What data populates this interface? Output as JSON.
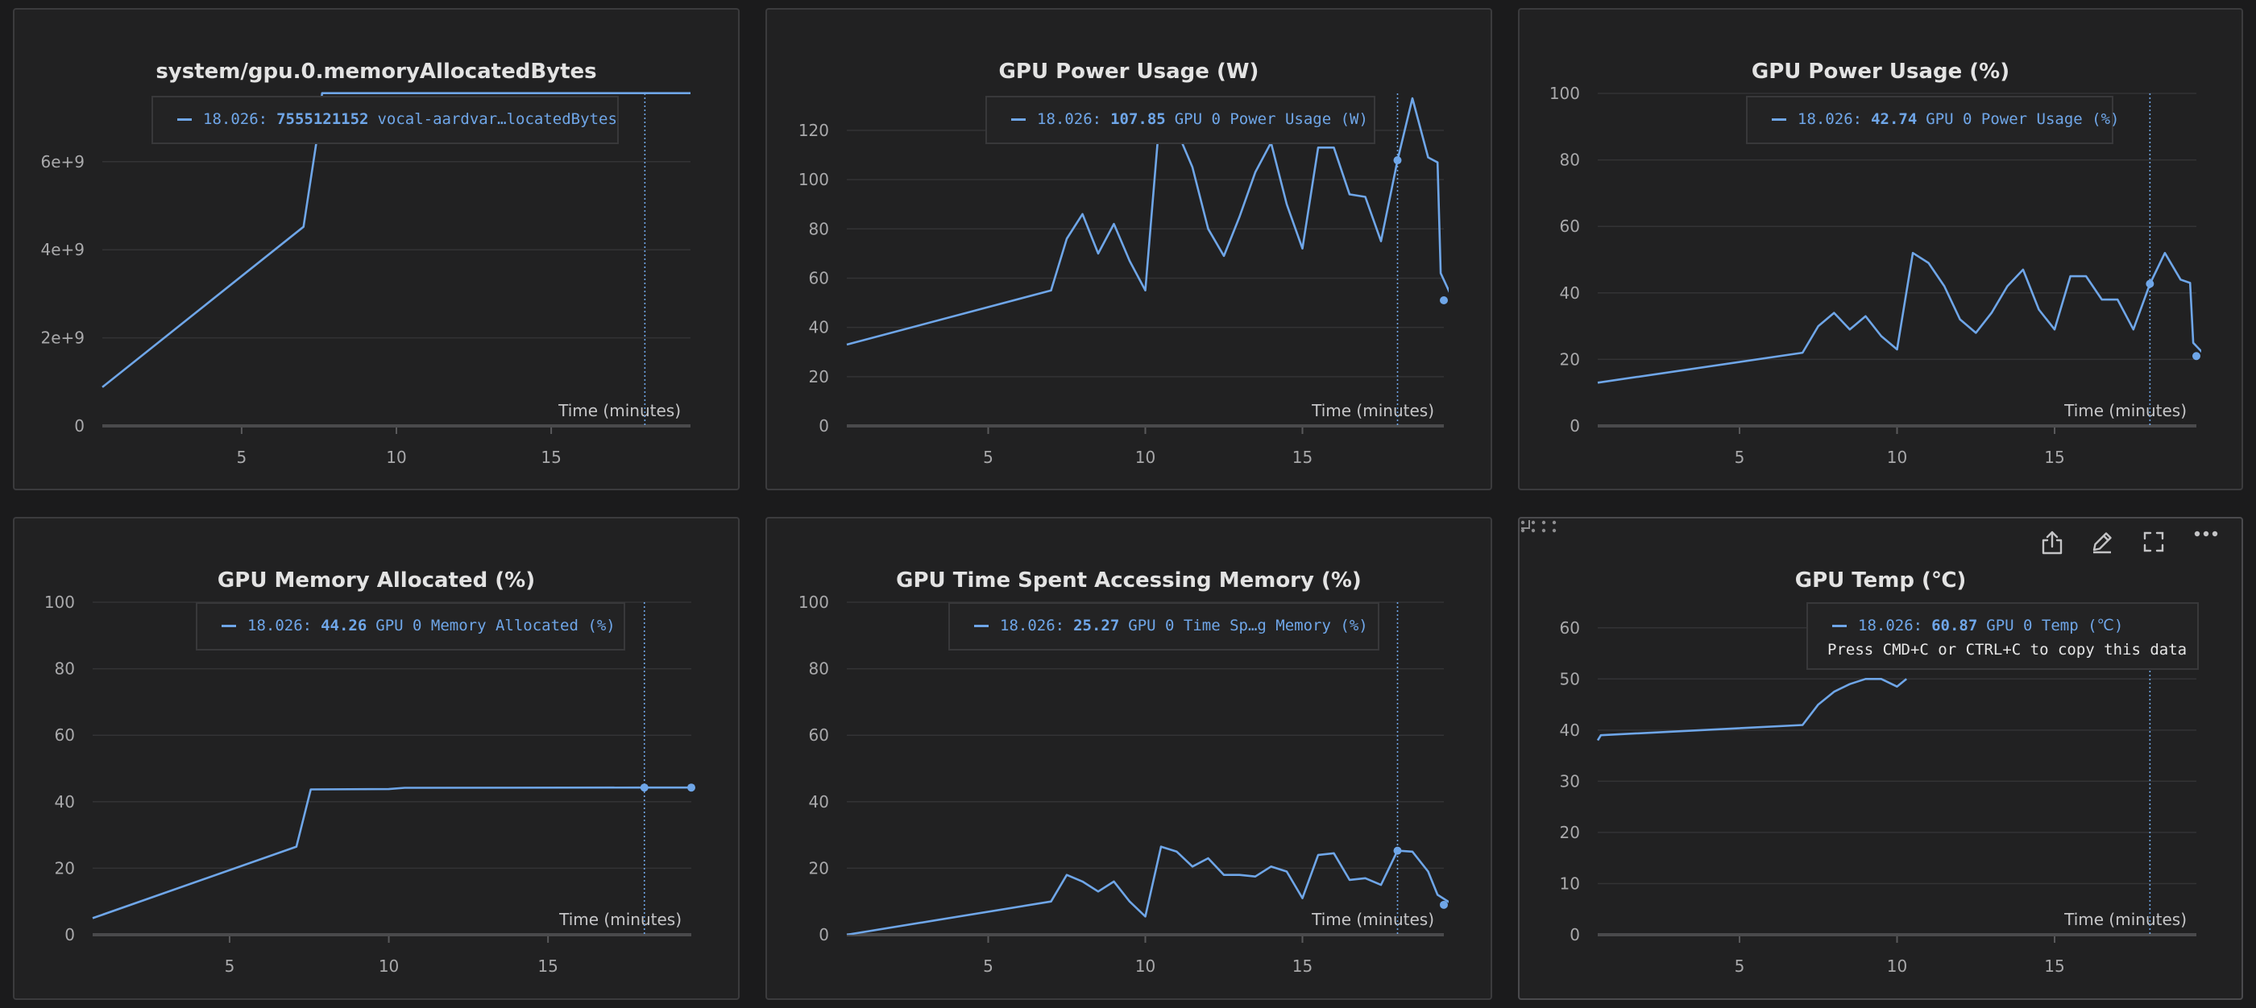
{
  "colors": {
    "series": "#6fa6e8",
    "panel_bg": "#212122",
    "page_bg": "#1b1b1c"
  },
  "panel_actions": [
    {
      "icon": "drag-handle-icon"
    },
    {
      "icon": "share-icon"
    },
    {
      "icon": "edit-icon"
    },
    {
      "icon": "fullscreen-icon"
    },
    {
      "icon": "more-options-icon"
    }
  ],
  "copy_hint": "Press CMD+C or CTRL+C to copy this data",
  "chart_data": [
    {
      "type": "line",
      "title": "system/gpu.0.memoryAllocatedBytes",
      "xlabel": "Time (minutes)",
      "ylabel": "",
      "xlim": [
        0.5,
        19.5
      ],
      "ylim": [
        0,
        7550000000.0
      ],
      "xticks": [
        5,
        10,
        15
      ],
      "yticks": [
        0,
        2000000000.0,
        4000000000.0,
        6000000000.0
      ],
      "ytick_labels": [
        "0",
        "2e+9",
        "4e+9",
        "6e+9"
      ],
      "grid": true,
      "cursor_x": 18.026,
      "tooltip": {
        "x": "18.026:",
        "value": "7555121152",
        "name": "vocal-aardvar…locatedBytes"
      },
      "series": [
        {
          "name": "vocal-aardvar…locatedBytes",
          "x": [
            0.5,
            7.0,
            7.45,
            7.6,
            17.2,
            18.026,
            19.5
          ],
          "y": [
            880000000,
            4520000000,
            6600000000,
            7555121152,
            7555121152,
            7555121152,
            7555121152
          ]
        }
      ]
    },
    {
      "type": "line",
      "title": "GPU Power Usage (W)",
      "xlabel": "Time (minutes)",
      "ylabel": "",
      "xlim": [
        0.5,
        19.5
      ],
      "ylim": [
        0,
        135
      ],
      "xticks": [
        5,
        10,
        15
      ],
      "yticks": [
        0,
        20,
        40,
        60,
        80,
        100,
        120
      ],
      "ytick_labels": [
        "0",
        "20",
        "40",
        "60",
        "80",
        "100",
        "120"
      ],
      "grid": true,
      "cursor_x": 18.026,
      "tooltip": {
        "x": "18.026:",
        "value": "107.85",
        "name": "GPU 0 Power Usage (W)"
      },
      "series": [
        {
          "name": "GPU 0 Power Usage (W)",
          "x": [
            0.5,
            7.0,
            7.5,
            8.0,
            8.5,
            9.0,
            9.5,
            10.0,
            10.5,
            11.0,
            11.5,
            12.0,
            12.5,
            13.0,
            13.5,
            14.0,
            14.5,
            15.0,
            15.5,
            16.0,
            16.5,
            17.0,
            17.5,
            18.026,
            18.5,
            19.0,
            19.3,
            19.4,
            19.8
          ],
          "y": [
            33,
            55,
            76,
            86,
            70,
            82,
            67,
            55,
            132,
            120,
            105,
            80,
            69,
            85,
            103,
            115,
            90,
            72,
            113,
            113,
            94,
            93,
            75,
            107.85,
            133,
            109,
            107,
            62,
            51
          ]
        }
      ]
    },
    {
      "type": "line",
      "title": "GPU Power Usage (%)",
      "xlabel": "Time (minutes)",
      "ylabel": "",
      "xlim": [
        0.5,
        19.5
      ],
      "ylim": [
        0,
        100
      ],
      "xticks": [
        5,
        10,
        15
      ],
      "yticks": [
        0,
        20,
        40,
        60,
        80,
        100
      ],
      "ytick_labels": [
        "0",
        "20",
        "40",
        "60",
        "80",
        "100"
      ],
      "grid": true,
      "cursor_x": 18.026,
      "tooltip": {
        "x": "18.026:",
        "value": "42.74",
        "name": "GPU 0 Power Usage (%)"
      },
      "series": [
        {
          "name": "GPU 0 Power Usage (%)",
          "x": [
            0.5,
            7.0,
            7.5,
            8.0,
            8.5,
            9.0,
            9.5,
            10.0,
            10.5,
            11.0,
            11.5,
            12.0,
            12.5,
            13.0,
            13.5,
            14.0,
            14.5,
            15.0,
            15.5,
            16.0,
            16.5,
            17.0,
            17.5,
            18.026,
            18.5,
            19.0,
            19.3,
            19.4,
            19.8
          ],
          "y": [
            13,
            22,
            30,
            34,
            29,
            33,
            27,
            23,
            52,
            49,
            42,
            32,
            28,
            34,
            42,
            47,
            35,
            29,
            45,
            45,
            38,
            38,
            29,
            42.74,
            52,
            44,
            43,
            25,
            21
          ]
        }
      ]
    },
    {
      "type": "line",
      "title": "GPU Memory Allocated (%)",
      "xlabel": "Time (minutes)",
      "ylabel": "",
      "xlim": [
        0.7,
        19.5
      ],
      "ylim": [
        0,
        100
      ],
      "xticks": [
        5,
        10,
        15
      ],
      "yticks": [
        0,
        20,
        40,
        60,
        80,
        100
      ],
      "ytick_labels": [
        "0",
        "20",
        "40",
        "60",
        "80",
        "100"
      ],
      "grid": true,
      "cursor_x": 18.026,
      "tooltip": {
        "x": "18.026:",
        "value": "44.26",
        "name": "GPU 0 Memory Allocated (%)"
      },
      "series": [
        {
          "name": "GPU 0 Memory Allocated (%)",
          "x": [
            0.7,
            7.1,
            7.55,
            10.0,
            10.5,
            18.026,
            19.5
          ],
          "y": [
            5,
            26.5,
            43.7,
            43.8,
            44.2,
            44.26,
            44.26
          ]
        }
      ]
    },
    {
      "type": "line",
      "title": "GPU Time Spent Accessing Memory (%)",
      "xlabel": "Time (minutes)",
      "ylabel": "",
      "xlim": [
        0.5,
        19.5
      ],
      "ylim": [
        0,
        100
      ],
      "xticks": [
        5,
        10,
        15
      ],
      "yticks": [
        0,
        20,
        40,
        60,
        80,
        100
      ],
      "ytick_labels": [
        "0",
        "20",
        "40",
        "60",
        "80",
        "100"
      ],
      "grid": true,
      "cursor_x": 18.026,
      "tooltip": {
        "x": "18.026:",
        "value": "25.27",
        "name": "GPU 0 Time Sp…g Memory (%)"
      },
      "series": [
        {
          "name": "GPU 0 Time Sp…g Memory (%)",
          "x": [
            0.5,
            7.0,
            7.5,
            8.0,
            8.5,
            9.0,
            9.5,
            10.0,
            10.5,
            11.0,
            11.5,
            12.0,
            12.5,
            13.0,
            13.5,
            14.0,
            14.5,
            15.0,
            15.5,
            16.0,
            16.5,
            17.0,
            17.5,
            18.026,
            18.5,
            19.0,
            19.3,
            19.8
          ],
          "y": [
            0,
            10,
            18,
            16,
            13,
            16,
            10,
            5.5,
            26.5,
            25,
            20.5,
            23,
            18,
            18,
            17.5,
            20.5,
            19,
            11,
            24,
            24.5,
            16.5,
            17,
            15,
            25.27,
            25,
            19,
            12,
            9
          ]
        }
      ]
    },
    {
      "type": "line",
      "title": "GPU Temp (℃)",
      "xlabel": "Time (minutes)",
      "ylabel": "",
      "xlim": [
        0.5,
        19.5
      ],
      "ylim": [
        0,
        65
      ],
      "xticks": [
        5,
        10,
        15
      ],
      "yticks": [
        0,
        10,
        20,
        30,
        40,
        50,
        60
      ],
      "ytick_labels": [
        "0",
        "10",
        "20",
        "30",
        "40",
        "50",
        "60"
      ],
      "grid": true,
      "cursor_x": 18.026,
      "tooltip": {
        "x": "18.026:",
        "value": "60.87",
        "name": "GPU 0 Temp (℃)"
      },
      "series": [
        {
          "name": "GPU 0 Temp (℃)",
          "x": [
            0.5,
            0.6,
            7.0,
            7.5,
            8.0,
            8.5,
            9.0,
            9.5,
            10.0,
            10.3
          ],
          "y": [
            38,
            39,
            41,
            45,
            47.5,
            49,
            50,
            50,
            48.5,
            50
          ]
        }
      ]
    }
  ]
}
